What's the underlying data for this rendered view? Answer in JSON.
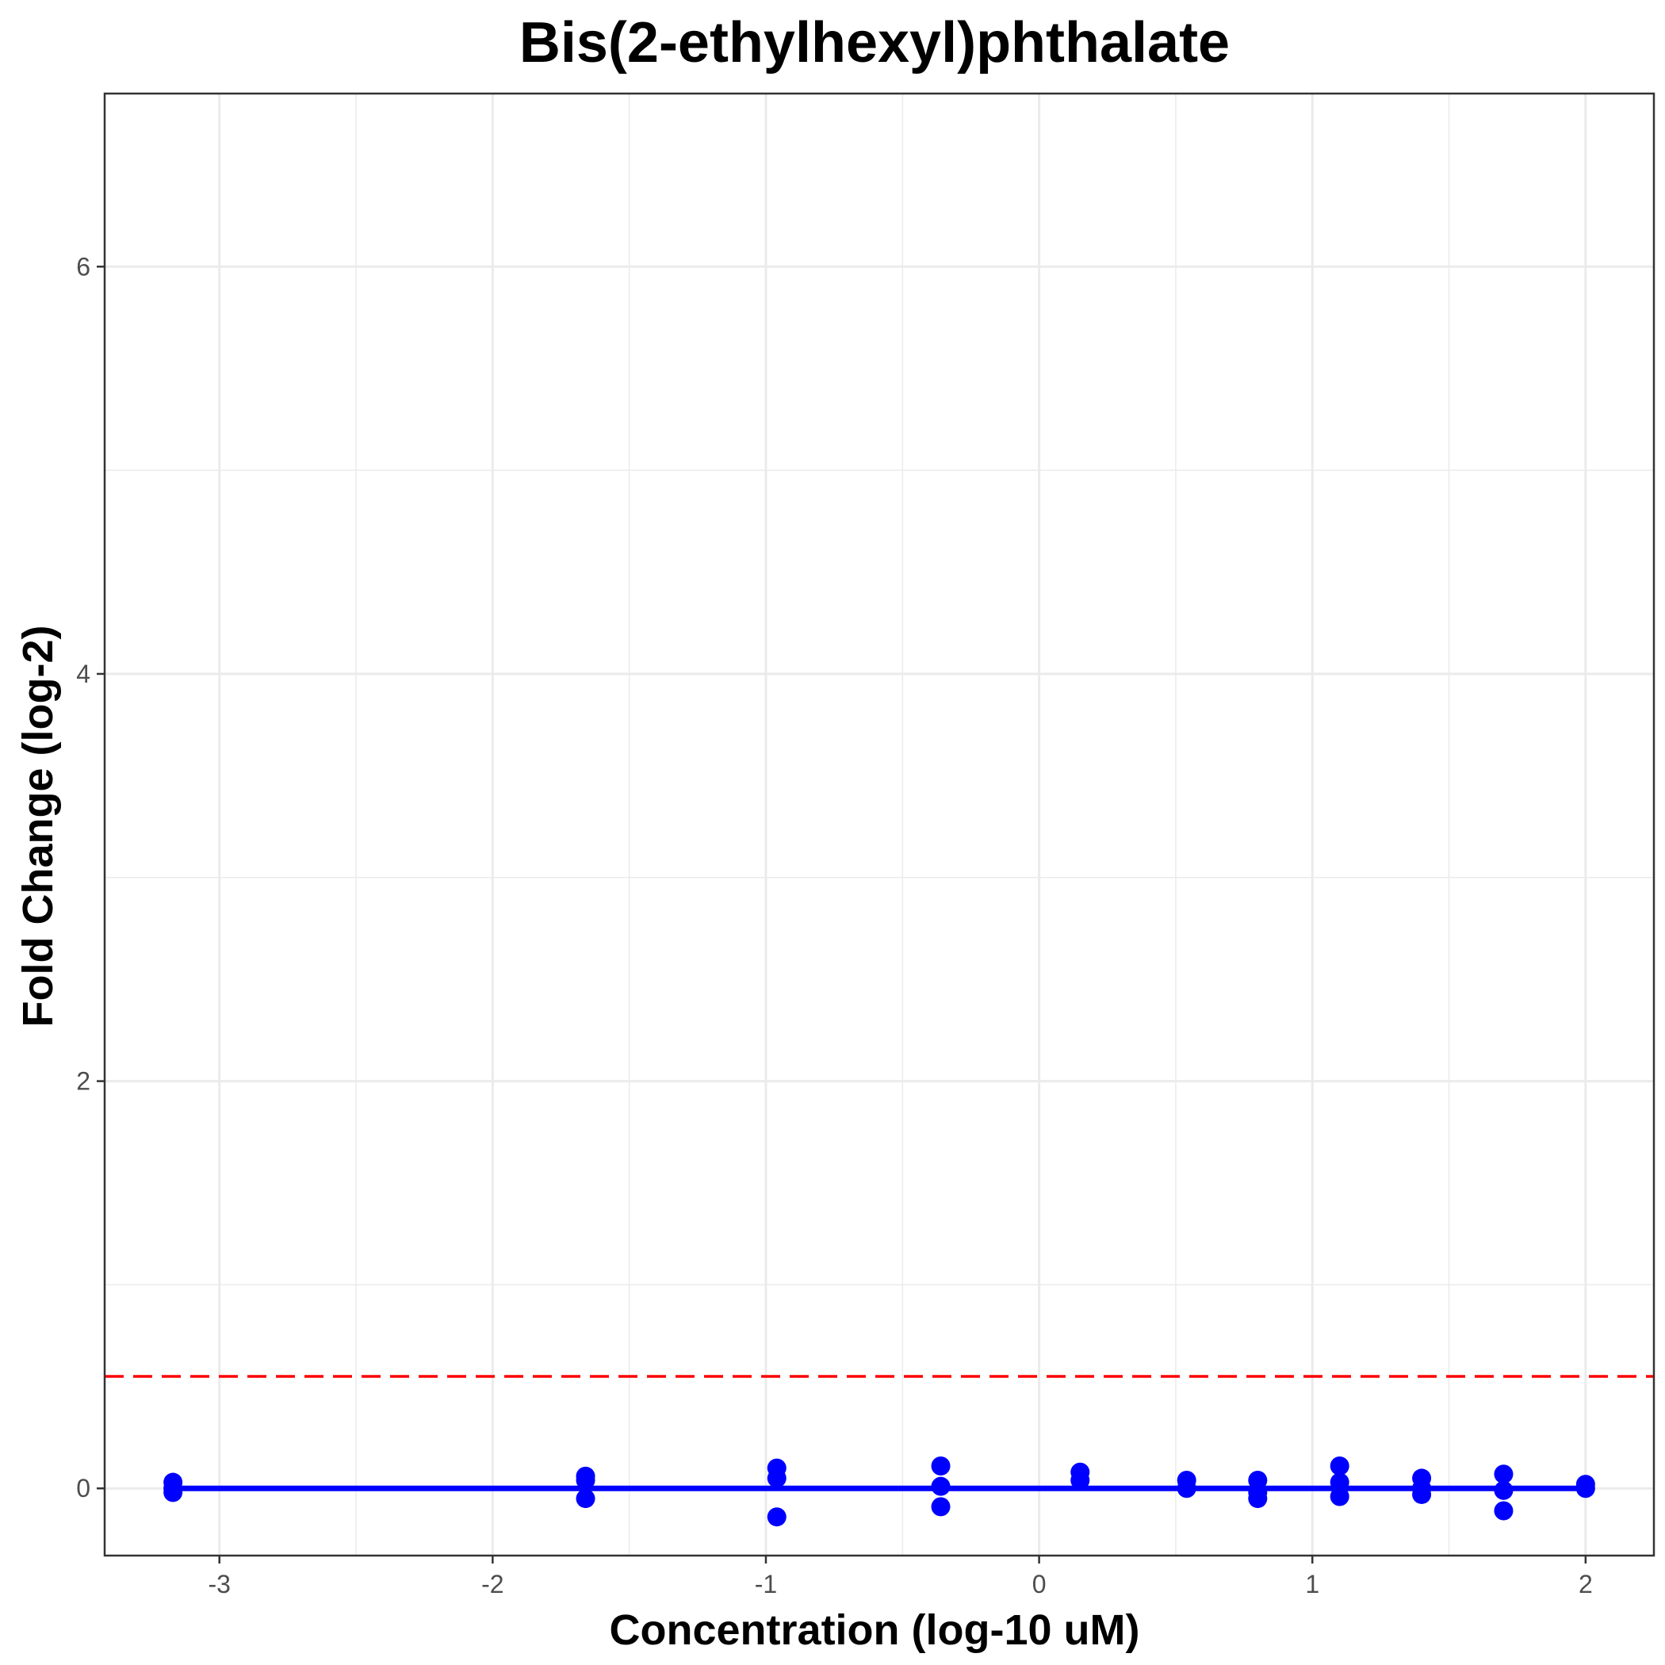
{
  "chart_data": {
    "type": "scatter",
    "title": "Bis(2-ethylhexyl)phthalate",
    "xlabel": "Concentration (log-10 uM)",
    "ylabel": "Fold Change (log-2)",
    "xlim": [
      -3.42,
      2.25
    ],
    "ylim": [
      -0.33,
      6.85
    ],
    "x_ticks": [
      -3,
      -2,
      -1,
      0,
      1,
      2
    ],
    "x_tick_labels": [
      "-3",
      "-2",
      "-1",
      "0",
      "1",
      "2"
    ],
    "y_ticks": [
      0,
      2,
      4,
      6
    ],
    "y_tick_labels": [
      "0",
      "2",
      "4",
      "6"
    ],
    "grid": true,
    "series": [
      {
        "type": "points",
        "color": "#0000ff",
        "x": [
          -3.17,
          -3.17,
          -3.17,
          -1.66,
          -1.66,
          -1.66,
          -0.96,
          -0.96,
          -0.96,
          -0.36,
          -0.36,
          -0.36,
          0.15,
          0.15,
          0.54,
          0.54,
          0.8,
          0.8,
          0.8,
          1.1,
          1.1,
          1.1,
          1.4,
          1.4,
          1.4,
          1.7,
          1.7,
          1.7,
          2.0,
          2.0
        ],
        "y": [
          0.03,
          0.0,
          -0.02,
          0.06,
          0.04,
          -0.05,
          0.1,
          0.05,
          -0.14,
          0.11,
          0.01,
          -0.09,
          0.08,
          0.04,
          0.04,
          0.0,
          0.04,
          -0.02,
          -0.05,
          0.11,
          0.03,
          -0.04,
          0.05,
          0.0,
          -0.03,
          0.07,
          -0.01,
          -0.11,
          0.02,
          0.0
        ]
      },
      {
        "type": "line",
        "color": "#0000ff",
        "x": [
          -3.17,
          2.0
        ],
        "y": [
          0.0,
          0.0
        ]
      },
      {
        "type": "hline",
        "color": "#ff0000",
        "style": "dashed",
        "y": 0.55
      }
    ]
  }
}
